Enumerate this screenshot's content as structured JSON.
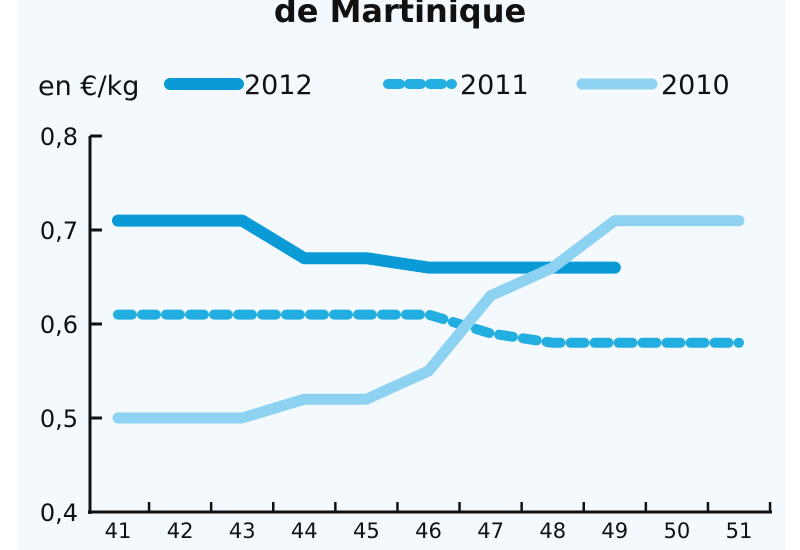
{
  "chart_data": {
    "type": "line",
    "title": "de Martinique",
    "unit_label": "en €/kg",
    "x": [
      41,
      42,
      43,
      44,
      45,
      46,
      47,
      48,
      49,
      50,
      51
    ],
    "x_tick_labels": [
      "41",
      "42",
      "43",
      "44",
      "45",
      "46",
      "47",
      "48",
      "49",
      "50",
      "51"
    ],
    "ylim": [
      0.4,
      0.8
    ],
    "y_ticks": [
      0.4,
      0.5,
      0.6,
      0.7,
      0.8
    ],
    "y_tick_labels": [
      "0,4",
      "0,5",
      "0,6",
      "0,7",
      "0,8"
    ],
    "grid": false,
    "legend_position": "top",
    "series": [
      {
        "name": "2012",
        "style": "solid",
        "color": "#0a9bd6",
        "values": [
          0.71,
          0.71,
          0.71,
          0.67,
          0.67,
          0.66,
          0.66,
          0.66,
          0.66,
          null,
          null
        ]
      },
      {
        "name": "2011",
        "style": "dashed",
        "color": "#22aee0",
        "values": [
          0.61,
          0.61,
          0.61,
          0.61,
          0.61,
          0.61,
          0.59,
          0.58,
          0.58,
          0.58,
          0.58
        ]
      },
      {
        "name": "2010",
        "style": "solid",
        "color": "#8dd3f1",
        "values": [
          0.5,
          0.5,
          0.5,
          0.52,
          0.52,
          0.55,
          0.63,
          0.66,
          0.71,
          0.71,
          0.71
        ]
      }
    ]
  }
}
